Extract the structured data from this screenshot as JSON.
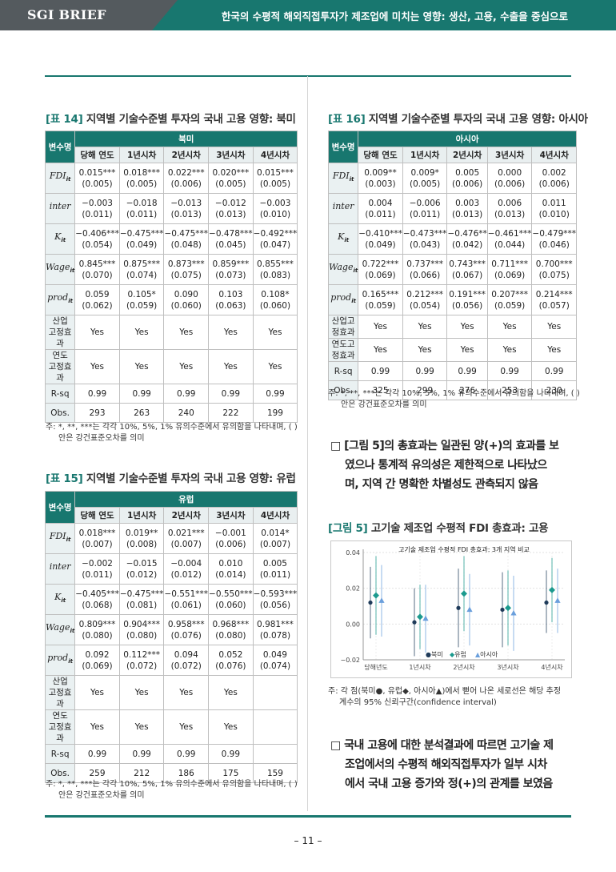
{
  "header": {
    "brand": "SGI BRIEF",
    "title": "한국의 수평적 해외직접투자가 제조업에 미치는 영향: 생산, 고용, 수출을 중심으로"
  },
  "page_number": "– 11 –",
  "tables": [
    {
      "tag": "[표 14]",
      "title": "지역별 기술수준별 투자의 국내 고용 영향: 북미",
      "var_header": "변수명",
      "region": "북미",
      "cols": [
        "당해 연도",
        "1년시차",
        "2년시차",
        "3년시차",
        "4년시차"
      ],
      "rows": [
        {
          "label": "FDI",
          "sub": "it",
          "coef": [
            "0.015***",
            "0.018***",
            "0.022***",
            "0.020***",
            "0.015***"
          ],
          "se": [
            "(0.005)",
            "(0.005)",
            "(0.006)",
            "(0.005)",
            "(0.005)"
          ]
        },
        {
          "label": "inter",
          "sub": "",
          "coef": [
            "−0.003",
            "−0.018",
            "−0.013",
            "−0.012",
            "−0.003"
          ],
          "se": [
            "(0.011)",
            "(0.011)",
            "(0.013)",
            "(0.013)",
            "(0.010)"
          ]
        },
        {
          "label": "K",
          "sub": "it",
          "coef": [
            "−0.406***",
            "−0.475***",
            "−0.475***",
            "−0.478***",
            "−0.492***"
          ],
          "se": [
            "(0.054)",
            "(0.049)",
            "(0.048)",
            "(0.045)",
            "(0.047)"
          ]
        },
        {
          "label": "Wage",
          "sub": "it",
          "coef": [
            "0.845***",
            "0.875***",
            "0.873***",
            "0.859***",
            "0.855***"
          ],
          "se": [
            "(0.070)",
            "(0.074)",
            "(0.075)",
            "(0.073)",
            "(0.083)"
          ]
        },
        {
          "label": "prod",
          "sub": "it",
          "coef": [
            "0.059",
            "0.105*",
            "0.090",
            "0.103",
            "0.108*"
          ],
          "se": [
            "(0.062)",
            "(0.059)",
            "(0.060)",
            "(0.063)",
            "(0.060)"
          ]
        }
      ],
      "extra": [
        {
          "l1": "산업",
          "l2": "고정효과",
          "vals": [
            "Yes",
            "Yes",
            "Yes",
            "Yes",
            "Yes"
          ]
        },
        {
          "l1": "연도",
          "l2": "고정효과",
          "vals": [
            "Yes",
            "Yes",
            "Yes",
            "Yes",
            "Yes"
          ]
        },
        {
          "l1": "R-sq",
          "l2": "",
          "vals": [
            "0.99",
            "0.99",
            "0.99",
            "0.99",
            "0.99"
          ]
        },
        {
          "l1": "Obs.",
          "l2": "",
          "vals": [
            "293",
            "263",
            "240",
            "222",
            "199"
          ]
        }
      ],
      "note1": "주: *, **, ***는 각각 10%, 5%, 1% 유의수준에서 유의함을 나타내며, ( )",
      "note2": "안은 강건표준오차를 의미"
    },
    {
      "tag": "[표 15]",
      "title": "지역별 기술수준별 투자의 국내 고용 영향: 유럽",
      "var_header": "변수명",
      "region": "유럽",
      "cols": [
        "당해 연도",
        "1년시차",
        "2년시차",
        "3년시차",
        "4년시차"
      ],
      "rows": [
        {
          "label": "FDI",
          "sub": "it",
          "coef": [
            "0.018***",
            "0.019**",
            "0.021***",
            "−0.001",
            "0.014*"
          ],
          "se": [
            "(0.007)",
            "(0.008)",
            "(0.007)",
            "(0.006)",
            "(0.007)"
          ]
        },
        {
          "label": "inter",
          "sub": "",
          "coef": [
            "−0.002",
            "−0.015",
            "−0.004",
            "0.010",
            "0.005"
          ],
          "se": [
            "(0.011)",
            "(0.012)",
            "(0.012)",
            "(0.014)",
            "(0.011)"
          ]
        },
        {
          "label": "K",
          "sub": "it",
          "coef": [
            "−0.405***",
            "−0.475***",
            "−0.551***",
            "−0.550***",
            "−0.593***"
          ],
          "se": [
            "(0.068)",
            "(0.081)",
            "(0.061)",
            "(0.060)",
            "(0.056)"
          ]
        },
        {
          "label": "Wage",
          "sub": "it",
          "coef": [
            "0.809***",
            "0.904***",
            "0.958***",
            "0.968***",
            "0.981***"
          ],
          "se": [
            "(0.080)",
            "(0.080)",
            "(0.076)",
            "(0.080)",
            "(0.078)"
          ]
        },
        {
          "label": "prod",
          "sub": "it",
          "coef": [
            "0.092",
            "0.112***",
            "0.094",
            "0.052",
            "0.049"
          ],
          "se": [
            "(0.069)",
            "(0.072)",
            "(0.072)",
            "(0.076)",
            "(0.074)"
          ]
        }
      ],
      "extra": [
        {
          "l1": "산업",
          "l2": "고정효과",
          "vals": [
            "Yes",
            "Yes",
            "Yes",
            "Yes",
            ""
          ]
        },
        {
          "l1": "연도",
          "l2": "고정효과",
          "vals": [
            "Yes",
            "Yes",
            "Yes",
            "Yes",
            ""
          ]
        },
        {
          "l1": "R-sq",
          "l2": "",
          "vals": [
            "0.99",
            "0.99",
            "0.99",
            "0.99",
            ""
          ]
        },
        {
          "l1": "Obs.",
          "l2": "",
          "vals": [
            "259",
            "212",
            "186",
            "175",
            "159"
          ]
        }
      ],
      "note1": "주: *, **, ***는 각각 10%, 5%, 1% 유의수준에서 유의함을 나타내며, ( )",
      "note2": "안은 강건표준오차를 의미"
    },
    {
      "tag": "[표 16]",
      "title": "지역별 기술수준별 투자의 국내 고용 영향: 아시아",
      "var_header": "변수명",
      "region": "아시아",
      "cols": [
        "당해 연도",
        "1년시차",
        "2년시차",
        "3년시차",
        "4년시차"
      ],
      "rows": [
        {
          "label": "FDI",
          "sub": "it",
          "coef": [
            "0.009**",
            "0.009*",
            "0.005",
            "0.000",
            "0.002"
          ],
          "se": [
            "(0.003)",
            "(0.005)",
            "(0.006)",
            "(0.006)",
            "(0.006)"
          ]
        },
        {
          "label": "inter",
          "sub": "",
          "coef": [
            "0.004",
            "−0.006",
            "0.003",
            "0.006",
            "0.011"
          ],
          "se": [
            "(0.011)",
            "(0.011)",
            "(0.013)",
            "(0.013)",
            "(0.010)"
          ]
        },
        {
          "label": "K",
          "sub": "it",
          "coef": [
            "−0.410***",
            "−0.473***",
            "−0.476**",
            "−0.461***",
            "−0.479***"
          ],
          "se": [
            "(0.049)",
            "(0.043)",
            "(0.042)",
            "(0.044)",
            "(0.046)"
          ]
        },
        {
          "label": "Wage",
          "sub": "it",
          "coef": [
            "0.722***",
            "0.737***",
            "0.743***",
            "0.711***",
            "0.700***"
          ],
          "se": [
            "(0.069)",
            "(0.066)",
            "(0.067)",
            "(0.069)",
            "(0.075)"
          ]
        },
        {
          "label": "prod",
          "sub": "it",
          "coef": [
            "0.165***",
            "0.212***",
            "0.191***",
            "0.207***",
            "0.214***"
          ],
          "se": [
            "(0.059)",
            "(0.054)",
            "(0.056)",
            "(0.059)",
            "(0.057)"
          ]
        }
      ],
      "extra": [
        {
          "l1": "산업고정효과",
          "l2": "",
          "vals": [
            "Yes",
            "Yes",
            "Yes",
            "Yes",
            "Yes"
          ]
        },
        {
          "l1": "연도고정효과",
          "l2": "",
          "vals": [
            "Yes",
            "Yes",
            "Yes",
            "Yes",
            "Yes"
          ]
        },
        {
          "l1": "R-sq",
          "l2": "",
          "vals": [
            "0.99",
            "0.99",
            "0.99",
            "0.99",
            "0.99"
          ]
        },
        {
          "l1": "Obs.",
          "l2": "",
          "vals": [
            "325",
            "299",
            "276",
            "253",
            "230"
          ]
        }
      ],
      "note1": "주: *, **, ***는 각각 10%, 5%, 1% 유의수준에서 유의함을 나타내며, ( )",
      "note2": "안은 강건표준오차를 의미"
    }
  ],
  "para1": [
    "□ [그림 5]의 총효과는 일관된 양(+)의 효과를 보",
    "였으나 통계적 유의성은 제한적으로 나타났으",
    "며, 지역 간 명확한 차별성도 관측되지 않음"
  ],
  "figure": {
    "tag": "[그림 5]",
    "title": "고기술 제조업 수평적 FDI 총효과: 고용",
    "note1": "주: 각 점(북미●, 유럽◆, 아시아▲)에서 뻗어 나온 세로선은 해당 추정",
    "note2": "계수의 95% 신뢰구간(confidence interval)"
  },
  "para2": [
    "□ 국내 고용에 대한 분석결과에 따르면 고기술 제",
    "조업에서의 수평적 해외직접투자가 일부 시차",
    "에서 국내 고용 증가와 정(+)의 관계를 보였음"
  ],
  "chart_data": {
    "type": "scatter",
    "title": "고기술 제조업 수평적 FDI 총효과: 3개 지역 비교",
    "categories": [
      "당해년도",
      "1년시차",
      "2년시차",
      "3년시차",
      "4년시차"
    ],
    "ylim": [
      -0.02,
      0.04
    ],
    "yticks": [
      "0.04",
      "0.02",
      "0.00",
      "−0.02"
    ],
    "series": [
      {
        "name": "북미",
        "marker": "●",
        "color": "#1f3b5a",
        "values": [
          0.012,
          0.001,
          0.009,
          0.008,
          0.012
        ],
        "ci_low": [
          -0.008,
          -0.018,
          -0.013,
          -0.013,
          -0.005
        ],
        "ci_high": [
          0.032,
          0.02,
          0.031,
          0.029,
          0.03
        ]
      },
      {
        "name": "유럽",
        "marker": "◆",
        "color": "#1b9a8e",
        "values": [
          0.016,
          0.004,
          0.017,
          0.009,
          0.019
        ],
        "ci_low": [
          -0.006,
          -0.014,
          -0.004,
          -0.012,
          0.001
        ],
        "ci_high": [
          0.038,
          0.022,
          0.038,
          0.03,
          0.037
        ]
      },
      {
        "name": "아시아",
        "marker": "▲",
        "color": "#6a9fdc",
        "values": [
          0.013,
          0.003,
          0.008,
          0.006,
          0.013
        ],
        "ci_low": [
          -0.007,
          -0.016,
          -0.012,
          -0.015,
          -0.005
        ],
        "ci_high": [
          0.033,
          0.022,
          0.028,
          0.027,
          0.031
        ]
      }
    ],
    "legend": "bottom-center",
    "grid": true
  }
}
